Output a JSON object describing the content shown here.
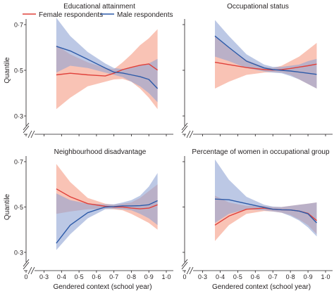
{
  "legend": {
    "female": "Female respondents",
    "male": "Male respondents"
  },
  "colors": {
    "female_line": "#e0403a",
    "female_band": "#f6a38e",
    "male_line": "#2c5aa8",
    "male_band": "#8fa3d4"
  },
  "chart_data": [
    {
      "type": "line",
      "title": "Educational attainment",
      "xlabel": "",
      "ylabel": "Quantile",
      "ylim": [
        0.3,
        0.7
      ],
      "yticks": [
        "0·3",
        "0·5",
        "0·7"
      ],
      "xlim": [
        0.33,
        1.0
      ],
      "xticks": [],
      "x": [
        0.37,
        0.45,
        0.55,
        0.65,
        0.7,
        0.75,
        0.8,
        0.85,
        0.9,
        0.95
      ],
      "series": [
        {
          "name": "Female respondents",
          "key": "female",
          "values": [
            0.48,
            0.487,
            0.48,
            0.475,
            0.487,
            0.503,
            0.513,
            0.522,
            0.528,
            0.501
          ],
          "lower": [
            0.33,
            0.38,
            0.43,
            0.45,
            0.46,
            0.462,
            0.45,
            0.42,
            0.38,
            0.33
          ],
          "upper": [
            0.61,
            0.57,
            0.535,
            0.51,
            0.505,
            0.535,
            0.57,
            0.61,
            0.64,
            0.68
          ]
        },
        {
          "name": "Male respondents",
          "key": "male",
          "values": [
            0.605,
            0.585,
            0.548,
            0.51,
            0.492,
            0.488,
            0.48,
            0.472,
            0.46,
            0.42
          ],
          "lower": [
            0.49,
            0.52,
            0.51,
            0.49,
            0.48,
            0.47,
            0.45,
            0.43,
            0.4,
            0.36
          ],
          "upper": [
            0.73,
            0.65,
            0.58,
            0.53,
            0.51,
            0.505,
            0.51,
            0.52,
            0.53,
            0.55
          ]
        }
      ]
    },
    {
      "type": "line",
      "title": "Occupational status",
      "xlabel": "",
      "ylabel": "",
      "ylim": [
        0.3,
        0.7
      ],
      "yticks": [],
      "xlim": [
        0.33,
        1.0
      ],
      "xticks": [],
      "x": [
        0.37,
        0.45,
        0.55,
        0.65,
        0.7,
        0.75,
        0.8,
        0.85,
        0.9,
        0.95
      ],
      "series": [
        {
          "name": "Female respondents",
          "key": "female",
          "values": [
            0.535,
            0.525,
            0.512,
            0.503,
            0.501,
            0.503,
            0.508,
            0.514,
            0.52,
            0.527
          ],
          "lower": [
            0.42,
            0.45,
            0.48,
            0.49,
            0.492,
            0.49,
            0.48,
            0.46,
            0.44,
            0.42
          ],
          "upper": [
            0.65,
            0.6,
            0.545,
            0.515,
            0.51,
            0.52,
            0.54,
            0.56,
            0.59,
            0.62
          ]
        },
        {
          "name": "Male respondents",
          "key": "male",
          "values": [
            0.65,
            0.6,
            0.54,
            0.51,
            0.503,
            0.5,
            0.497,
            0.492,
            0.487,
            0.482
          ],
          "lower": [
            0.56,
            0.54,
            0.51,
            0.495,
            0.49,
            0.487,
            0.475,
            0.46,
            0.44,
            0.42
          ],
          "upper": [
            0.72,
            0.65,
            0.57,
            0.525,
            0.515,
            0.515,
            0.52,
            0.525,
            0.54,
            0.55
          ]
        }
      ]
    },
    {
      "type": "line",
      "title": "Neighbourhood disadvantage",
      "xlabel": "Gendered context (school year)",
      "ylabel": "Quantile",
      "ylim": [
        0.3,
        0.7
      ],
      "yticks": [
        "0·3",
        "0·5",
        "0·7"
      ],
      "xlim": [
        0.33,
        1.0
      ],
      "xticks": [
        "0·3",
        "0·4",
        "0·5",
        "0·6",
        "0·7",
        "0·8",
        "0·9",
        "1·0"
      ],
      "x": [
        0.37,
        0.45,
        0.55,
        0.65,
        0.7,
        0.75,
        0.8,
        0.85,
        0.9,
        0.95
      ],
      "series": [
        {
          "name": "Female respondents",
          "key": "female",
          "values": [
            0.58,
            0.545,
            0.515,
            0.503,
            0.5,
            0.5,
            0.495,
            0.492,
            0.495,
            0.51
          ],
          "lower": [
            0.47,
            0.48,
            0.49,
            0.492,
            0.49,
            0.485,
            0.47,
            0.45,
            0.43,
            0.4
          ],
          "upper": [
            0.69,
            0.61,
            0.54,
            0.515,
            0.51,
            0.515,
            0.52,
            0.54,
            0.57,
            0.6
          ]
        },
        {
          "name": "Male respondents",
          "key": "male",
          "values": [
            0.34,
            0.42,
            0.475,
            0.5,
            0.502,
            0.505,
            0.505,
            0.506,
            0.51,
            0.528
          ],
          "lower": [
            0.31,
            0.38,
            0.45,
            0.49,
            0.492,
            0.49,
            0.485,
            0.47,
            0.45,
            0.42
          ],
          "upper": [
            0.56,
            0.53,
            0.515,
            0.512,
            0.512,
            0.52,
            0.53,
            0.55,
            0.59,
            0.65
          ]
        }
      ]
    },
    {
      "type": "line",
      "title": "Percentage of women in occupational group",
      "xlabel": "Gendered context (school year)",
      "ylabel": "",
      "ylim": [
        0.3,
        0.7
      ],
      "yticks": [],
      "xlim": [
        0.33,
        1.0
      ],
      "xticks": [
        "0·3",
        "0·4",
        "0·5",
        "0·6",
        "0·7",
        "0·8",
        "0·9",
        "1·0"
      ],
      "x": [
        0.37,
        0.45,
        0.55,
        0.65,
        0.7,
        0.75,
        0.8,
        0.85,
        0.9,
        0.95
      ],
      "series": [
        {
          "name": "Female respondents",
          "key": "female",
          "values": [
            0.42,
            0.46,
            0.49,
            0.495,
            0.49,
            0.488,
            0.487,
            0.482,
            0.472,
            0.44
          ],
          "lower": [
            0.35,
            0.42,
            0.47,
            0.482,
            0.48,
            0.475,
            0.465,
            0.445,
            0.42,
            0.38
          ],
          "upper": [
            0.55,
            0.52,
            0.505,
            0.505,
            0.5,
            0.5,
            0.505,
            0.51,
            0.515,
            0.52
          ]
        },
        {
          "name": "Male respondents",
          "key": "male",
          "values": [
            0.535,
            0.532,
            0.515,
            0.498,
            0.49,
            0.488,
            0.487,
            0.482,
            0.47,
            0.43
          ],
          "lower": [
            0.43,
            0.47,
            0.49,
            0.485,
            0.48,
            0.475,
            0.46,
            0.44,
            0.41,
            0.37
          ],
          "upper": [
            0.71,
            0.62,
            0.545,
            0.51,
            0.502,
            0.5,
            0.505,
            0.51,
            0.515,
            0.52
          ]
        }
      ]
    }
  ]
}
